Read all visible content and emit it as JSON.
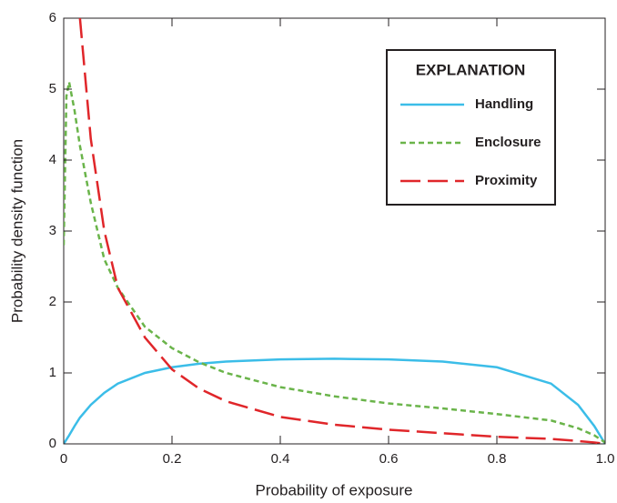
{
  "chart_data": {
    "type": "line",
    "x_label": "Probability of exposure",
    "y_label": "Probability density function",
    "legend_title": "EXPLANATION",
    "legend_position": "upper right",
    "x": [
      0,
      0.005,
      0.01,
      0.02,
      0.03,
      0.05,
      0.075,
      0.1,
      0.15,
      0.2,
      0.25,
      0.3,
      0.4,
      0.5,
      0.6,
      0.7,
      0.8,
      0.9,
      0.95,
      0.98,
      1.0
    ],
    "series": [
      {
        "name": "Handling",
        "color": "#3bbde8",
        "values": [
          0,
          0.06,
          0.12,
          0.25,
          0.37,
          0.55,
          0.72,
          0.85,
          1.0,
          1.08,
          1.13,
          1.16,
          1.19,
          1.2,
          1.19,
          1.16,
          1.08,
          0.85,
          0.55,
          0.25,
          0
        ]
      },
      {
        "name": "Enclosure",
        "color": "#6ab44a",
        "values": [
          2.8,
          4.9,
          5.1,
          4.7,
          4.2,
          3.4,
          2.6,
          2.2,
          1.65,
          1.35,
          1.15,
          1.0,
          0.8,
          0.67,
          0.57,
          0.5,
          0.42,
          0.33,
          0.22,
          0.12,
          0.02
        ]
      },
      {
        "name": "Proximity",
        "color": "#e0262a",
        "values": [
          null,
          null,
          null,
          null,
          6.0,
          4.3,
          3.0,
          2.2,
          1.5,
          1.05,
          0.78,
          0.6,
          0.38,
          0.27,
          0.2,
          0.15,
          0.1,
          0.07,
          0.04,
          0.02,
          0
        ]
      }
    ],
    "xlim": [
      0,
      1.0
    ],
    "ylim": [
      0,
      6
    ],
    "xticks": [
      0,
      0.2,
      0.4,
      0.6,
      0.8,
      {
        "value": 1.0,
        "label": "1.0"
      }
    ],
    "yticks": [
      0,
      1,
      2,
      3,
      4,
      5,
      6
    ]
  }
}
